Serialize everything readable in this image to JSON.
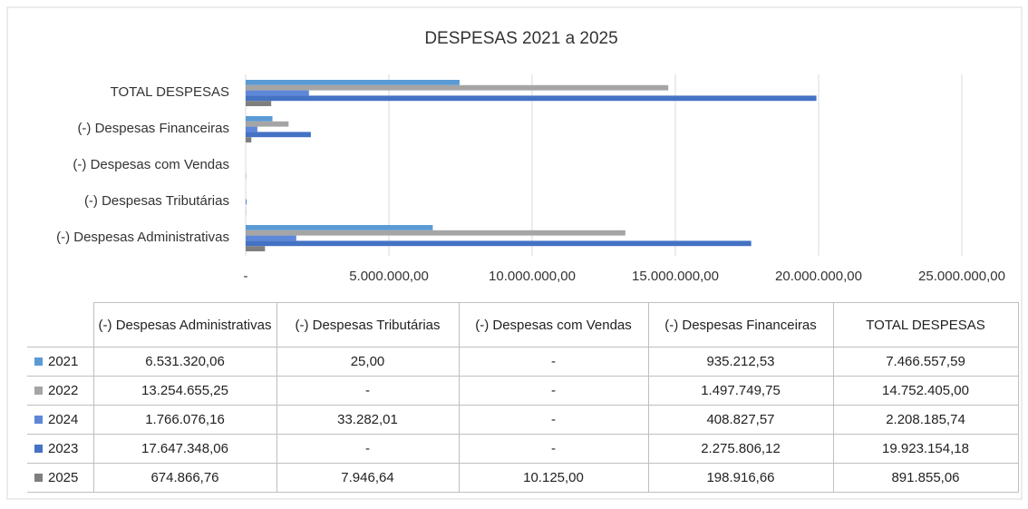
{
  "chart_data": {
    "type": "bar",
    "orientation": "horizontal",
    "title": "DESPESAS 2021 a 2025",
    "categories": [
      "(-) Despesas Administrativas",
      "(-) Despesas Tributárias",
      "(-) Despesas com Vendas",
      "(-) Despesas Financeiras",
      "TOTAL DESPESAS"
    ],
    "series": [
      {
        "name": "2021",
        "color": "#5b9bd5",
        "values": [
          6531320.06,
          25,
          null,
          935212.53,
          7466557.59
        ],
        "value_labels": [
          "6.531.320,06",
          "25,00",
          "-",
          "935.212,53",
          "7.466.557,59"
        ]
      },
      {
        "name": "2022",
        "color": "#a5a5a5",
        "values": [
          13254655.25,
          null,
          null,
          1497749.75,
          14752405.0
        ],
        "value_labels": [
          "13.254.655,25",
          "-",
          "-",
          "1.497.749,75",
          "14.752.405,00"
        ]
      },
      {
        "name": "2024",
        "color": "#5f87d8",
        "values": [
          1766076.16,
          33282.01,
          null,
          408827.57,
          2208185.74
        ],
        "value_labels": [
          "1.766.076,16",
          "33.282,01",
          "-",
          "408.827,57",
          "2.208.185,74"
        ]
      },
      {
        "name": "2023",
        "color": "#4472c4",
        "values": [
          17647348.06,
          null,
          null,
          2275806.12,
          19923154.18
        ],
        "value_labels": [
          "17.647.348,06",
          "-",
          "-",
          "2.275.806,12",
          "19.923.154,18"
        ]
      },
      {
        "name": "2025",
        "color": "#7f7f7f",
        "values": [
          674866.76,
          7946.64,
          10125.0,
          198916.66,
          891855.06
        ],
        "value_labels": [
          "674.866,76",
          "7.946,64",
          "10.125,00",
          "198.916,66",
          "891.855,06"
        ]
      }
    ],
    "xlim": [
      0,
      25000000
    ],
    "xticks": [
      {
        "value": 0,
        "label": "-"
      },
      {
        "value": 5000000,
        "label": "5.000.000,00"
      },
      {
        "value": 10000000,
        "label": "10.000.000,00"
      },
      {
        "value": 15000000,
        "label": "15.000.000,00"
      },
      {
        "value": 20000000,
        "label": "20.000.000,00"
      },
      {
        "value": 25000000,
        "label": "25.000.000,00"
      }
    ],
    "grid": true
  }
}
